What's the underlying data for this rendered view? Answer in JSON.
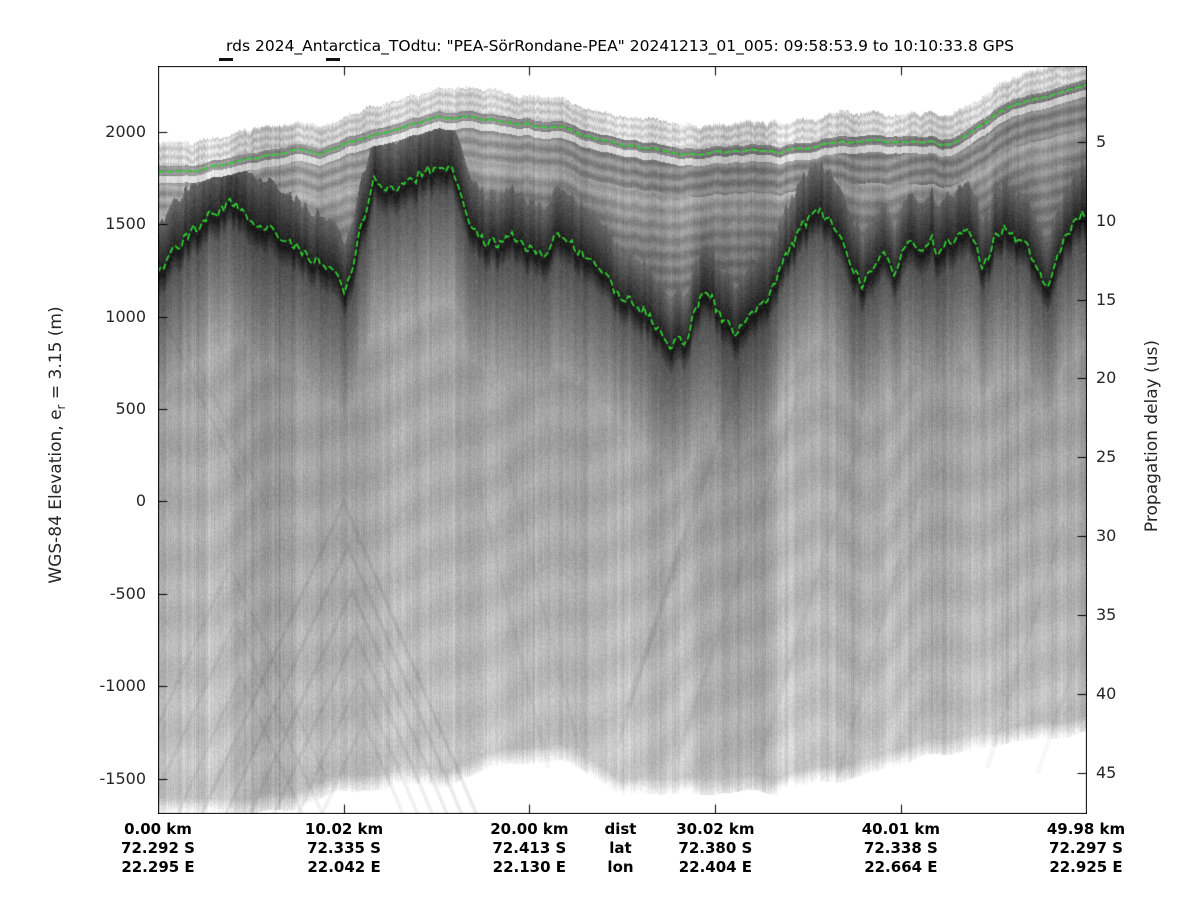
{
  "figure": {
    "background": "#ffffff"
  },
  "chart_data": {
    "type": "heatmap",
    "subtype": "radar-echogram",
    "title": "rds 2024_Antarctica_TOdtu: \"PEA-SörRondane-PEA\"  20241213_01_005: 09:58:53.9 to 10:10:33.8 GPS",
    "colormap": "grayscale, white = weak echo, black = strong echo",
    "pick_color": "#2fd330",
    "first_return_offset_m": 160,
    "left_axis": {
      "label_prefix": "WGS-84 Elevation, e",
      "label_sub": "r",
      "label_suffix": " = 3.15 (m)",
      "ticks": [
        2000,
        1500,
        1000,
        500,
        0,
        -500,
        -1000,
        -1500
      ],
      "value_at_plot_top_m": 2355,
      "value_at_plot_bottom_m": -1690
    },
    "right_axis": {
      "label": "Propagation delay (us)",
      "ticks": [
        5,
        10,
        15,
        20,
        25,
        30,
        35,
        40,
        45
      ],
      "value_at_plot_top_us": 0.2,
      "value_at_plot_bottom_us": 47.6
    },
    "x_axis": {
      "row_headers": {
        "dist": "dist",
        "lat": "lat",
        "lon": "lon"
      },
      "range_km": [
        0,
        49.98
      ],
      "columns": [
        {
          "km": 0.0,
          "dist": "0.00 km",
          "lat": "72.292 S",
          "lon": "22.295 E"
        },
        {
          "km": 10.02,
          "dist": "10.02 km",
          "lat": "72.335 S",
          "lon": "22.042 E"
        },
        {
          "km": 20.0,
          "dist": "20.00 km",
          "lat": "72.413 S",
          "lon": "22.130 E"
        },
        {
          "km": 30.02,
          "dist": "30.02 km",
          "lat": "72.380 S",
          "lon": "22.404 E"
        },
        {
          "km": 40.01,
          "dist": "40.01 km",
          "lat": "72.338 S",
          "lon": "22.664 E"
        },
        {
          "km": 49.98,
          "dist": "49.98 km",
          "lat": "72.297 S",
          "lon": "22.925 E"
        }
      ]
    },
    "series": [
      {
        "name": "surface-pick",
        "style": "dashed",
        "x_km": [
          0,
          2.3,
          5.0,
          7.6,
          8.7,
          10.3,
          12.0,
          13.6,
          15.2,
          16.3,
          17.9,
          20.0,
          21.7,
          23.8,
          26.0,
          28.1,
          29.2,
          30.3,
          31.9,
          33.5,
          35.1,
          36.7,
          38.4,
          40.0,
          41.6,
          42.7,
          43.7,
          45.3,
          46.9,
          48.6,
          49.98
        ],
        "elev_m": [
          1782,
          1793,
          1857,
          1900,
          1875,
          1940,
          1994,
          2037,
          2075,
          2080,
          2064,
          2037,
          2020,
          1955,
          1912,
          1885,
          1874,
          1890,
          1901,
          1890,
          1912,
          1944,
          1955,
          1944,
          1940,
          1928,
          1983,
          2107,
          2172,
          2215,
          2253
        ]
      },
      {
        "name": "bed-pick",
        "style": "dashed",
        "x_km": [
          0,
          0.9,
          2.3,
          3.9,
          5.5,
          7.1,
          8.2,
          9.3,
          10.1,
          10.9,
          11.7,
          12.5,
          13.3,
          14.4,
          15.2,
          16.0,
          16.8,
          17.6,
          18.4,
          19.2,
          20.0,
          20.8,
          21.6,
          22.7,
          23.8,
          24.9,
          26.0,
          27.0,
          27.6,
          28.4,
          29.2,
          29.8,
          30.8,
          31.2,
          32.0,
          32.8,
          33.5,
          34.2,
          34.9,
          35.5,
          36.2,
          37.0,
          37.4,
          37.9,
          38.7,
          39.3,
          39.7,
          40.1,
          40.6,
          41.0,
          41.6,
          42.0,
          42.3,
          42.9,
          43.4,
          44.0,
          44.4,
          45.0,
          45.6,
          46.2,
          46.9,
          47.4,
          47.9,
          48.4,
          48.9,
          49.4,
          49.98
        ],
        "elev_m": [
          1200,
          1360,
          1500,
          1610,
          1500,
          1415,
          1335,
          1250,
          1140,
          1470,
          1740,
          1660,
          1700,
          1790,
          1840,
          1760,
          1495,
          1420,
          1390,
          1445,
          1360,
          1310,
          1440,
          1360,
          1250,
          1120,
          1040,
          930,
          860,
          880,
          1090,
          1100,
          938,
          911,
          1020,
          1105,
          1252,
          1398,
          1522,
          1604,
          1506,
          1344,
          1268,
          1171,
          1306,
          1333,
          1198,
          1377,
          1414,
          1360,
          1430,
          1317,
          1377,
          1430,
          1470,
          1380,
          1236,
          1430,
          1470,
          1430,
          1380,
          1240,
          1160,
          1300,
          1430,
          1490,
          1560
        ]
      }
    ],
    "no_data_boundary": {
      "x_km": [
        0,
        0.65,
        2.26,
        4.95,
        7.65,
        10.34,
        13.0,
        15.7,
        18.4,
        20.0,
        21.6,
        24.9,
        29.2,
        33.0,
        35.7,
        38.3,
        41.0,
        42.8,
        44.6,
        46.4,
        49.1,
        49.98
      ],
      "elev_m": [
        -1669,
        -1685,
        -1696,
        -1680,
        -1642,
        -1561,
        -1534,
        -1523,
        -1436,
        -1409,
        -1382,
        -1588,
        -1588,
        -1571,
        -1534,
        -1469,
        -1382,
        -1355,
        -1328,
        -1306,
        -1263,
        -1236
      ]
    }
  }
}
